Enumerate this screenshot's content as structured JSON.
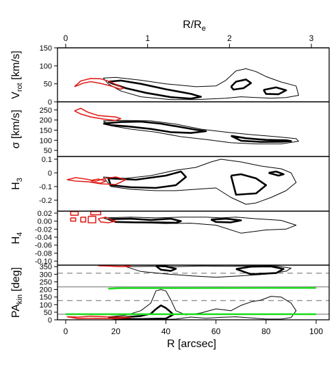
{
  "chart_data": {
    "type": "line",
    "top_axis": {
      "label": "R/R",
      "label_sub": "e",
      "ticks": [
        "0",
        "1",
        "2",
        "3"
      ],
      "range": [
        0,
        3
      ]
    },
    "bottom_axis": {
      "label": "R [arcsec]",
      "ticks": [
        "0",
        "20",
        "40",
        "60",
        "80",
        "100"
      ],
      "range": [
        0,
        100
      ]
    },
    "panels": [
      {
        "id": "vrot",
        "ylabel": "V",
        "ylabel_sub": "rot",
        "ylabel_suffix": " [km/s]",
        "ylim": [
          0,
          150
        ],
        "yticks": [
          "150",
          "100",
          "50",
          "0"
        ],
        "ytick_values": [
          150,
          100,
          50,
          0
        ]
      },
      {
        "id": "sigma",
        "ylabel": "σ [km/s]",
        "ylim": [
          20,
          290
        ],
        "yticks": [
          "300",
          "250",
          "200",
          "150",
          "100",
          "50"
        ],
        "ytick_values": [
          300,
          250,
          200,
          150,
          100,
          50
        ]
      },
      {
        "id": "h3",
        "ylabel": "H",
        "ylabel_sub": "3",
        "ylim": [
          -0.28,
          0.12
        ],
        "yticks": [
          "0.1",
          "0",
          "-0.1",
          "-0.2"
        ],
        "ytick_values": [
          0.1,
          0,
          -0.1,
          -0.2
        ]
      },
      {
        "id": "h4",
        "ylabel": "H",
        "ylabel_sub": "4",
        "ylim": [
          -0.11,
          0.025
        ],
        "yticks": [
          "0.02",
          "0.00",
          "-0.02",
          "-0.04",
          "-0.06",
          "-0.08",
          "-0.10"
        ],
        "ytick_values": [
          0.02,
          0.0,
          -0.02,
          -0.04,
          -0.06,
          -0.08,
          -0.1
        ]
      },
      {
        "id": "pakin",
        "ylabel": "PA",
        "ylabel_sub": "kin",
        "ylabel_suffix": " [deg]",
        "ylim": [
          0,
          360
        ],
        "yticks": [
          "350",
          "300",
          "250",
          "200",
          "150",
          "100",
          "50",
          "0"
        ],
        "ytick_values": [
          350,
          300,
          250,
          200,
          150,
          100,
          50,
          0
        ],
        "reference_lines": [
          {
            "value": 307,
            "style": "dashed",
            "color": "#9a9a9a"
          },
          {
            "value": 217,
            "style": "solid",
            "color": "#9a9a9a"
          },
          {
            "value": 127,
            "style": "dashed",
            "color": "#9a9a9a"
          },
          {
            "value": 37,
            "style": "solid",
            "color": "#9a9a9a"
          }
        ],
        "green_lines": [
          {
            "x": [
              17,
              22,
              100
            ],
            "y": [
              205,
              209,
              210
            ]
          },
          {
            "x": [
              0,
              100
            ],
            "y": [
              37,
              37
            ]
          }
        ]
      }
    ],
    "colors": {
      "inner": "#e0201b",
      "outer": "#000000",
      "green": "#22dd22",
      "grid": "#9a9a9a"
    },
    "contours": {
      "vrot": {
        "red": [
          {
            "x": [
              3.5,
              6,
              10,
              14,
              18,
              21,
              23,
              22,
              18,
              14,
              10,
              7,
              5,
              3.5
            ],
            "y": [
              42,
              58,
              65,
              64,
              55,
              45,
              38,
              35,
              44,
              51,
              56,
              52,
              46,
              42
            ]
          }
        ],
        "black_thick": [
          {
            "x": [
              17,
              22,
              30,
              40,
              50,
              54,
              50,
              42,
              32,
              24,
              19,
              17
            ],
            "y": [
              56,
              59,
              50,
              35,
              22,
              14,
              9,
              13,
              25,
              38,
              50,
              56
            ]
          },
          {
            "x": [
              66,
              68,
              72,
              74,
              71,
              67,
              66
            ],
            "y": [
              42,
              56,
              62,
              52,
              38,
              34,
              42
            ]
          },
          {
            "x": [
              79,
              84,
              88,
              85,
              80,
              79
            ],
            "y": [
              33,
              40,
              32,
              21,
              22,
              33
            ]
          }
        ],
        "black_thin": [
          {
            "x": [
              15,
              20,
              30,
              40,
              52,
              60,
              64,
              68,
              72,
              76,
              80,
              86,
              92,
              93,
              88,
              82,
              76,
              70,
              64,
              58,
              52,
              42,
              30,
              22,
              17,
              15
            ],
            "y": [
              66,
              68,
              60,
              50,
              42,
              44,
              60,
              86,
              92,
              84,
              70,
              55,
              44,
              18,
              12,
              10,
              12,
              14,
              10,
              8,
              6,
              6,
              14,
              30,
              50,
              66
            ]
          }
        ]
      },
      "sigma": {
        "red": [
          {
            "x": [
              3.5,
              6,
              9,
              13,
              17,
              20,
              22,
              20,
              15,
              10,
              6,
              3.5
            ],
            "y": [
              245,
              258,
              238,
              222,
              218,
              215,
              207,
              198,
              205,
              215,
              230,
              245
            ]
          }
        ],
        "black_thick": [
          {
            "x": [
              15,
              22,
              30,
              38,
              46,
              52,
              56,
              50,
              42,
              34,
              25,
              18,
              15
            ],
            "y": [
              183,
              190,
              192,
              182,
              165,
              152,
              145,
              136,
              140,
              156,
              168,
              175,
              183
            ]
          },
          {
            "x": [
              66,
              72,
              80,
              88,
              90,
              86,
              78,
              70,
              66
            ],
            "y": [
              122,
              110,
              102,
              100,
              96,
              93,
              92,
              98,
              122
            ]
          }
        ],
        "black_thin": [
          {
            "x": [
              15,
              24,
              34,
              44,
              54,
              64,
              74,
              84,
              92,
              93,
              86,
              76,
              66,
              56,
              46,
              36,
              26,
              18,
              15
            ],
            "y": [
              196,
              198,
              196,
              180,
              155,
              140,
              128,
              118,
              108,
              95,
              82,
              82,
              88,
              104,
              118,
              140,
              155,
              172,
              196
            ]
          }
        ]
      },
      "h3": {
        "red": [
          {
            "x": [
              0.5,
              4,
              8,
              12,
              16,
              20,
              24,
              20,
              14,
              9,
              4,
              0.5
            ],
            "y": [
              -0.05,
              -0.035,
              -0.045,
              -0.06,
              -0.04,
              -0.03,
              -0.05,
              -0.085,
              -0.08,
              -0.065,
              -0.06,
              -0.05
            ]
          },
          {
            "x": [
              10,
              13,
              16,
              14,
              11,
              10
            ],
            "y": [
              -0.055,
              -0.045,
              -0.06,
              -0.075,
              -0.068,
              -0.055
            ]
          }
        ],
        "black_thick": [
          {
            "x": [
              17,
              28,
              40,
              46,
              48,
              44,
              36,
              26,
              18,
              17
            ],
            "y": [
              -0.04,
              -0.05,
              -0.02,
              0.01,
              -0.03,
              -0.09,
              -0.11,
              -0.105,
              -0.09,
              -0.04
            ]
          },
          {
            "x": [
              66,
              70,
              76,
              80,
              76,
              68,
              66
            ],
            "y": [
              -0.02,
              -0.01,
              -0.04,
              -0.09,
              -0.15,
              -0.16,
              -0.02
            ]
          },
          {
            "x": [
              81,
              84,
              87,
              85,
              81
            ],
            "y": [
              0.0,
              0.01,
              -0.01,
              -0.02,
              0.0
            ]
          }
        ],
        "black_thin": [
          {
            "x": [
              15,
              24,
              34,
              44,
              52,
              58,
              62,
              70,
              78,
              86,
              90,
              92,
              88,
              82,
              76,
              72,
              66,
              60,
              52,
              44,
              36,
              26,
              18,
              15
            ],
            "y": [
              -0.03,
              -0.04,
              -0.02,
              0.02,
              0.04,
              0.08,
              0.1,
              0.08,
              0.05,
              0.03,
              0.0,
              -0.07,
              -0.13,
              -0.18,
              -0.22,
              -0.23,
              -0.18,
              -0.11,
              -0.12,
              -0.13,
              -0.13,
              -0.12,
              -0.1,
              -0.03
            ]
          }
        ]
      },
      "h4": {
        "red": [
          {
            "x": [
              2,
              5,
              5,
              2,
              2
            ],
            "y": [
              0.024,
              0.024,
              0.015,
              0.015,
              0.024
            ]
          },
          {
            "x": [
              6,
              8,
              8,
              6,
              6
            ],
            "y": [
              0.01,
              0.01,
              -0.002,
              -0.002,
              0.01
            ]
          },
          {
            "x": [
              10,
              14,
              14,
              10,
              10
            ],
            "y": [
              0.024,
              0.024,
              0.016,
              0.016,
              0.024
            ]
          },
          {
            "x": [
              9,
              12,
              12,
              9,
              9
            ],
            "y": [
              0.012,
              0.012,
              -0.004,
              -0.004,
              0.012
            ]
          },
          {
            "x": [
              13,
              16,
              18,
              20,
              17,
              14,
              13
            ],
            "y": [
              0.006,
              0.01,
              0.004,
              0.0,
              -0.004,
              -0.002,
              0.006
            ]
          },
          {
            "x": [
              2,
              4,
              4,
              2,
              2
            ],
            "y": [
              0.008,
              0.008,
              0.0,
              0.0,
              0.008
            ]
          }
        ],
        "black_thick": [
          {
            "x": [
              17,
              26,
              34,
              42,
              46,
              44,
              36,
              28,
              20,
              17
            ],
            "y": [
              0.005,
              0.006,
              0.003,
              0.006,
              0.0,
              -0.004,
              -0.003,
              -0.003,
              -0.002,
              0.005
            ]
          },
          {
            "x": [
              58,
              64,
              70,
              66,
              60,
              58
            ],
            "y": [
              0.004,
              0.006,
              0.002,
              -0.003,
              -0.002,
              0.004
            ]
          }
        ],
        "black_thin": [
          {
            "x": [
              15,
              26,
              36,
              46,
              56,
              62,
              68,
              76,
              86,
              92,
              88,
              80,
              70,
              60,
              50,
              40,
              30,
              20,
              15
            ],
            "y": [
              0.008,
              0.01,
              0.008,
              0.01,
              0.01,
              0.008,
              0.01,
              0.006,
              0.002,
              -0.01,
              -0.02,
              -0.022,
              -0.03,
              -0.01,
              -0.005,
              -0.006,
              -0.004,
              -0.003,
              0.008
            ]
          }
        ]
      },
      "pakin": {
        "red": [
          {
            "x": [
              0.5,
              5,
              10,
              16,
              22,
              26,
              20,
              12,
              5,
              0.5
            ],
            "y": [
              20,
              18,
              24,
              20,
              18,
              16,
              8,
              10,
              8,
              20
            ]
          },
          {
            "x": [
              13,
              17,
              22,
              26,
              23,
              16,
              13
            ],
            "y": [
              356,
              354,
              350,
              352,
              360,
              360,
              356
            ]
          }
        ],
        "black_thick": [
          {
            "x": [
              17,
              24,
              30,
              34,
              36,
              38,
              40,
              43,
              40,
              30,
              20,
              17
            ],
            "y": [
              15,
              18,
              25,
              40,
              70,
              95,
              78,
              35,
              8,
              5,
              6,
              15
            ]
          },
          {
            "x": [
              36,
              40,
              44,
              42,
              38,
              36
            ],
            "y": [
              355,
              352,
              336,
              322,
              330,
              355
            ]
          },
          {
            "x": [
              68,
              74,
              82,
              87,
              84,
              74,
              68
            ],
            "y": [
              335,
              350,
              352,
              335,
              308,
              300,
              335
            ]
          }
        ],
        "black_thin": [
          {
            "x": [
              17,
              24,
              30,
              34,
              36,
              38,
              40,
              42,
              44,
              48,
              54,
              60,
              66,
              70,
              74,
              78,
              82,
              86,
              90,
              92,
              90,
              86,
              80,
              74,
              68,
              62,
              56,
              50,
              44,
              36,
              28,
              20,
              17
            ],
            "y": [
              20,
              30,
              60,
              110,
              190,
              200,
              190,
              130,
              60,
              32,
              45,
              72,
              60,
              95,
              118,
              130,
              155,
              150,
              110,
              60,
              15,
              5,
              5,
              12,
              20,
              16,
              10,
              18,
              5,
              2,
              3,
              6,
              20
            ]
          },
          {
            "x": [
              24,
              34,
              44,
              54,
              64,
              74,
              84,
              90,
              88,
              80,
              70,
              60,
              50,
              40,
              30,
              24
            ],
            "y": [
              350,
              352,
              350,
              354,
              352,
              354,
              354,
              340,
              320,
              300,
              290,
              280,
              290,
              302,
              318,
              350
            ]
          }
        ]
      }
    }
  }
}
